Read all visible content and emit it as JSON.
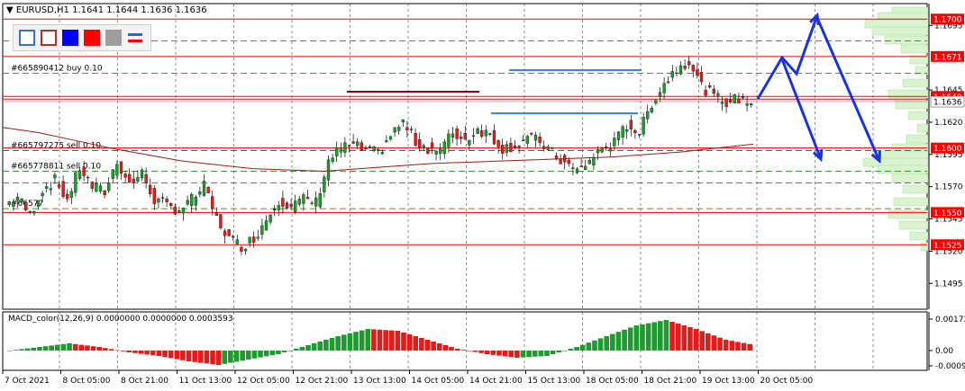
{
  "header": {
    "symbol_tf": "EURUSD,H1",
    "ohlc": "1.1641 1.1644 1.1636 1.1636"
  },
  "toolbox": {
    "colors": [
      "#ffffff",
      "#ffffff",
      "#0000ff",
      "#ff0000",
      "#9e9e9e",
      "#1565ff"
    ]
  },
  "orders": [
    {
      "label": "#665890412 buy 0.10",
      "price": 1.1658
    },
    {
      "label": "#665797275 sell 0.10",
      "price": 1.1598
    },
    {
      "label": "#665778811 sell 0.10",
      "price": 1.1582
    },
    {
      "label": "#66577",
      "price": 1.1553
    }
  ],
  "price_scale": {
    "min": 1.1475,
    "max": 1.1712,
    "ticks": [
      "1.1695",
      "1.1645",
      "1.1620",
      "1.1595",
      "1.1570",
      "1.1545",
      "1.1520",
      "1.1495"
    ],
    "tick_values": [
      1.1695,
      1.1645,
      1.162,
      1.1595,
      1.157,
      1.1545,
      1.152,
      1.1495
    ]
  },
  "levels": [
    {
      "label": "1.1700",
      "price": 1.17,
      "color": "#ff0000"
    },
    {
      "label": "1.1671",
      "price": 1.1671,
      "color": "#ff0000"
    },
    {
      "label": "1.1640",
      "price": 1.164,
      "color": "#ff0000"
    },
    {
      "label": "1.1636",
      "price": 1.1636,
      "color": "#555555"
    },
    {
      "label": "1.1600",
      "price": 1.16,
      "color": "#ff0000"
    },
    {
      "label": "1.1550",
      "price": 1.155,
      "color": "#ff0000"
    },
    {
      "label": "1.1525",
      "price": 1.1525,
      "color": "#ff0000"
    }
  ],
  "time_axis": {
    "labels": [
      "7 Oct 2021",
      "8 Oct 05:00",
      "8 Oct 21:00",
      "11 Oct 13:00",
      "12 Oct 05:00",
      "12 Oct 21:00",
      "13 Oct 13:00",
      "14 Oct 05:00",
      "14 Oct 21:00",
      "15 Oct 13:00",
      "18 Oct 05:00",
      "18 Oct 21:00",
      "19 Oct 13:00",
      "20 Oct 05:00"
    ]
  },
  "macd": {
    "title": "MACD_color(12,26,9) 0.0000000 0.0000000 0.0003593",
    "ticks": [
      "0.001722",
      "0.00",
      "-0.00093"
    ],
    "tick_values": [
      0.001722,
      0.0,
      -0.00093
    ]
  },
  "chart_data": {
    "type": "candlestick",
    "symbol": "EURUSD",
    "timeframe": "H1",
    "close_path": [
      1.1556,
      1.1562,
      1.1548,
      1.1568,
      1.1575,
      1.156,
      1.1585,
      1.157,
      1.1566,
      1.159,
      1.1572,
      1.158,
      1.156,
      1.1555,
      1.1552,
      1.156,
      1.157,
      1.1545,
      1.153,
      1.1524,
      1.153,
      1.1545,
      1.156,
      1.1555,
      1.156,
      1.1558,
      1.159,
      1.16,
      1.1602,
      1.1598,
      1.1596,
      1.161,
      1.162,
      1.1605,
      1.16,
      1.1598,
      1.1612,
      1.1606,
      1.1615,
      1.161,
      1.16,
      1.1602,
      1.1608,
      1.1605,
      1.1596,
      1.1588,
      1.1582,
      1.159,
      1.16,
      1.1604,
      1.1618,
      1.1612,
      1.1635,
      1.165,
      1.1662,
      1.1668,
      1.1648,
      1.164,
      1.1636,
      1.1638,
      1.1636
    ],
    "ma_path": [
      1.1616,
      1.1612,
      1.1606,
      1.16,
      1.1595,
      1.159,
      1.1587,
      1.1584,
      1.1583,
      1.1582,
      1.1584,
      1.1586,
      1.1588,
      1.1589,
      1.159,
      1.1591,
      1.1592,
      1.1593,
      1.1595,
      1.1597,
      1.16,
      1.1603
    ],
    "macd_hist": [
      0.0,
      0.0002,
      0.0004,
      0.0002,
      -0.0001,
      -0.0003,
      -0.0006,
      -0.0008,
      -0.0005,
      -0.0002,
      0.0003,
      0.0008,
      0.0012,
      0.0011,
      0.0006,
      0.0001,
      -0.0002,
      -0.0004,
      -0.0003,
      0.0002,
      0.0008,
      0.0014,
      0.0017,
      0.0012,
      0.0006,
      0.0003
    ]
  }
}
